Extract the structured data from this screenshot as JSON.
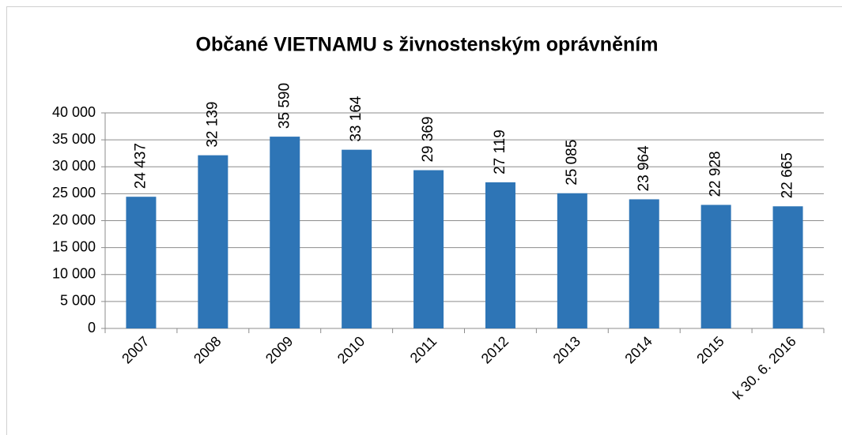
{
  "chart_data": {
    "type": "bar",
    "title": "Občané VIETNAMU s živnostenským oprávněním",
    "categories": [
      "2007",
      "2008",
      "2009",
      "2010",
      "2011",
      "2012",
      "2013",
      "2014",
      "2015",
      "k 30. 6. 2016"
    ],
    "values": [
      24437,
      32139,
      35590,
      33164,
      29369,
      27119,
      25085,
      23964,
      22928,
      22665
    ],
    "value_labels": [
      "24 437",
      "32 139",
      "35 590",
      "33 164",
      "29 369",
      "27 119",
      "25 085",
      "23 964",
      "22 928",
      "22 665"
    ],
    "color": "#2e75b6",
    "ylim": [
      0,
      40000
    ],
    "yticks": [
      0,
      {
        "value": 5000,
        "label": "5 000"
      },
      {
        "value": 10000,
        "label": "10 000"
      },
      {
        "value": 15000,
        "label": "15 000"
      },
      {
        "value": 20000,
        "label": "20 000"
      },
      {
        "value": 25000,
        "label": "25 000"
      },
      {
        "value": 30000,
        "label": "30 000"
      },
      {
        "value": 35000,
        "label": "35 000"
      },
      {
        "value": 40000,
        "label": "40 000"
      }
    ],
    "grid": true
  }
}
